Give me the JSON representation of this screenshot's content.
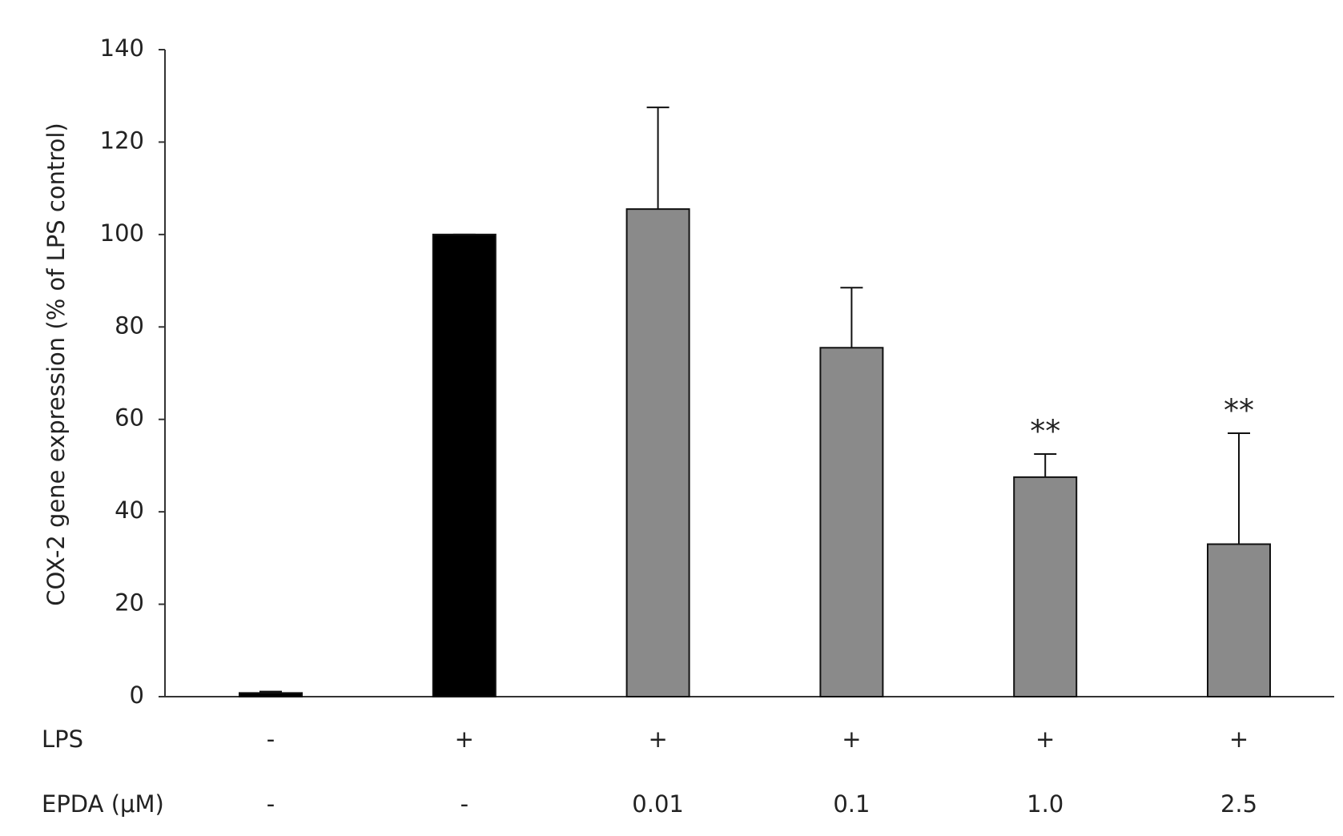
{
  "chart_data": {
    "type": "bar",
    "ylabel": "COX-2 gene expression (% of LPS control)",
    "label_rows": [
      {
        "name": "LPS",
        "labels": [
          "-",
          "+",
          "+",
          "+",
          "+",
          "+"
        ]
      },
      {
        "name": "EPDA (μM)",
        "labels": [
          "-",
          "-",
          "0.01",
          "0.1",
          "1.0",
          "2.5"
        ]
      }
    ],
    "values": [
      0.8,
      100,
      105.5,
      75.5,
      47.5,
      33
    ],
    "errors": [
      0.3,
      0,
      22,
      13,
      5,
      24
    ],
    "significance": [
      null,
      null,
      null,
      null,
      "**",
      "**"
    ],
    "colors": [
      "#000000",
      "#000000",
      "#8a8a8a",
      "#8a8a8a",
      "#8a8a8a",
      "#8a8a8a"
    ],
    "ylim": [
      0,
      140
    ],
    "yticks": [
      0,
      20,
      40,
      60,
      80,
      100,
      120,
      140
    ]
  }
}
